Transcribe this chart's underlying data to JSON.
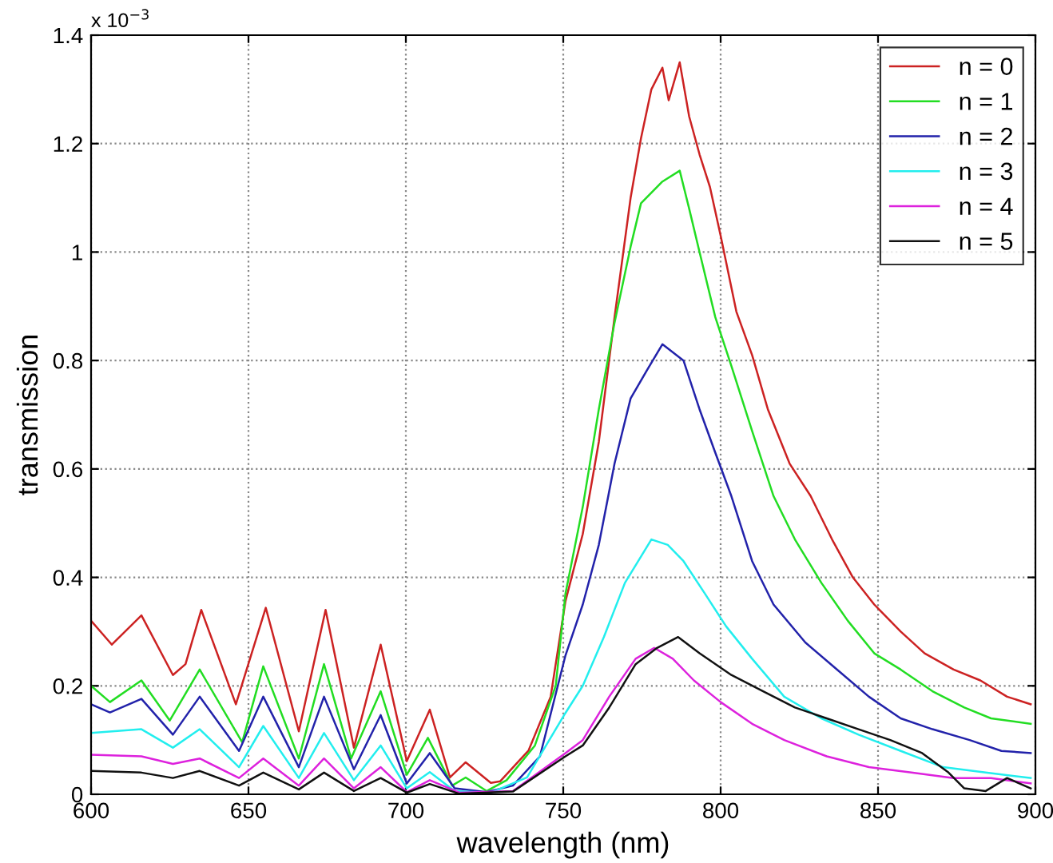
{
  "chart_data": {
    "type": "line",
    "xlabel": "wavelength (nm)",
    "ylabel": "transmission",
    "annotations": [
      "x 10$^{−3}$"
    ],
    "xlim": [
      600,
      900
    ],
    "ylim": [
      0,
      1.4
    ],
    "xticks": [
      600,
      650,
      700,
      750,
      800,
      850,
      900
    ],
    "yticks": [
      0,
      0.2,
      0.4,
      0.6,
      0.8,
      1,
      1.2,
      1.4
    ],
    "grid": true,
    "legend": "top right",
    "line_style": "solid",
    "marker": "none",
    "series": [
      {
        "name": "n = 0",
        "color": "#cc2222",
        "x": [
          600,
          606.6,
          616,
          626,
          630,
          635,
          646,
          655.5,
          666,
          674.5,
          683.5,
          692,
          700.3,
          707.6,
          714,
          719,
          727,
          730,
          739,
          746,
          750.7,
          756.2,
          761.3,
          766.3,
          771.4,
          774.7,
          778,
          781.5,
          783.5,
          787,
          790,
          793.3,
          796.6,
          800,
          805,
          810,
          815,
          821.9,
          828.6,
          835.4,
          842,
          848.8,
          857.2,
          864.8,
          874,
          882.5,
          891,
          898.5
        ],
        "values": [
          0.32,
          0.276,
          0.33,
          0.22,
          0.24,
          0.34,
          0.166,
          0.344,
          0.116,
          0.34,
          0.086,
          0.276,
          0.061,
          0.156,
          0.031,
          0.059,
          0.021,
          0.024,
          0.081,
          0.18,
          0.356,
          0.48,
          0.65,
          0.88,
          1.1,
          1.21,
          1.3,
          1.34,
          1.28,
          1.35,
          1.25,
          1.18,
          1.12,
          1.03,
          0.89,
          0.81,
          0.71,
          0.61,
          0.55,
          0.47,
          0.4,
          0.35,
          0.3,
          0.26,
          0.23,
          0.21,
          0.18,
          0.166
        ]
      },
      {
        "name": "n = 1",
        "color": "#22dd22",
        "x": [
          600,
          606,
          616,
          625,
          634.5,
          648,
          654.7,
          666,
          674,
          682.6,
          692,
          700.3,
          707,
          714.7,
          719,
          725.7,
          732,
          741,
          747.6,
          750.7,
          756.2,
          761.3,
          766.3,
          771.4,
          774.7,
          781.5,
          787,
          790,
          793.3,
          798.3,
          803.4,
          810,
          816.8,
          823.6,
          832,
          840.4,
          848.8,
          857.2,
          867.3,
          877.4,
          885.9,
          898.5
        ],
        "values": [
          0.2,
          0.17,
          0.21,
          0.136,
          0.23,
          0.096,
          0.236,
          0.066,
          0.24,
          0.066,
          0.19,
          0.036,
          0.104,
          0.016,
          0.031,
          0.006,
          0.026,
          0.09,
          0.2,
          0.37,
          0.53,
          0.71,
          0.87,
          1.01,
          1.09,
          1.13,
          1.15,
          1.08,
          1.0,
          0.88,
          0.79,
          0.67,
          0.55,
          0.47,
          0.39,
          0.32,
          0.26,
          0.23,
          0.19,
          0.16,
          0.14,
          0.13
        ]
      },
      {
        "name": "n = 2",
        "color": "#2222aa",
        "x": [
          600,
          606,
          616,
          626,
          634.5,
          647,
          654.7,
          666,
          674,
          683.5,
          692,
          700.3,
          707.6,
          715.5,
          725.7,
          734,
          742.6,
          750.7,
          756.2,
          761.3,
          766.3,
          771.4,
          776.4,
          781.5,
          788.2,
          793.3,
          798.3,
          803.4,
          810,
          816.8,
          826.9,
          837,
          847.1,
          857.2,
          867.3,
          879.1,
          889.2,
          898.5
        ],
        "values": [
          0.166,
          0.151,
          0.176,
          0.11,
          0.18,
          0.08,
          0.18,
          0.05,
          0.18,
          0.046,
          0.146,
          0.02,
          0.076,
          0.011,
          0.004,
          0.016,
          0.07,
          0.256,
          0.35,
          0.46,
          0.61,
          0.73,
          0.78,
          0.83,
          0.8,
          0.71,
          0.63,
          0.55,
          0.43,
          0.35,
          0.28,
          0.23,
          0.18,
          0.14,
          0.12,
          0.1,
          0.08,
          0.076
        ]
      },
      {
        "name": "n = 3",
        "color": "#22eeee",
        "x": [
          600,
          616,
          626,
          634.5,
          647,
          654.7,
          666,
          674,
          683.5,
          692,
          700.3,
          707.6,
          715.5,
          727,
          738.5,
          750.7,
          756.2,
          762.9,
          769.6,
          778,
          783.2,
          788.2,
          795,
          801.7,
          810,
          820.2,
          832,
          843.8,
          857.2,
          870.7,
          884.2,
          898.5
        ],
        "values": [
          0.113,
          0.12,
          0.086,
          0.12,
          0.05,
          0.126,
          0.03,
          0.113,
          0.026,
          0.09,
          0.011,
          0.041,
          0.006,
          0.003,
          0.031,
          0.15,
          0.2,
          0.29,
          0.39,
          0.47,
          0.46,
          0.43,
          0.37,
          0.31,
          0.25,
          0.18,
          0.14,
          0.11,
          0.08,
          0.05,
          0.04,
          0.03
        ]
      },
      {
        "name": "n = 4",
        "color": "#dd22dd",
        "x": [
          600,
          616,
          626,
          634.5,
          647,
          654.7,
          666,
          674,
          683.5,
          692,
          700.3,
          707.6,
          717,
          734,
          750.7,
          756.2,
          764.6,
          773,
          778.9,
          784.8,
          791.5,
          800,
          810,
          820.2,
          833.7,
          847.1,
          860.6,
          874,
          885.9,
          898.5
        ],
        "values": [
          0.073,
          0.07,
          0.056,
          0.066,
          0.03,
          0.066,
          0.016,
          0.066,
          0.011,
          0.05,
          0.004,
          0.026,
          0.003,
          0.006,
          0.076,
          0.1,
          0.18,
          0.25,
          0.27,
          0.25,
          0.21,
          0.17,
          0.13,
          0.1,
          0.07,
          0.05,
          0.04,
          0.03,
          0.03,
          0.02
        ]
      },
      {
        "name": "n = 5",
        "color": "#111111",
        "x": [
          600,
          616,
          626,
          634.5,
          647,
          654.7,
          666,
          674,
          683.5,
          692,
          700.3,
          707.6,
          717,
          734,
          750.7,
          756.2,
          764.6,
          773,
          779.8,
          786.5,
          793.3,
          803.4,
          813.5,
          823.6,
          833.7,
          843.8,
          853.9,
          864,
          872.4,
          877.4,
          884.2,
          891,
          898.5
        ],
        "values": [
          0.043,
          0.04,
          0.03,
          0.043,
          0.016,
          0.04,
          0.009,
          0.04,
          0.006,
          0.03,
          0.003,
          0.019,
          0.001,
          0.005,
          0.07,
          0.09,
          0.16,
          0.24,
          0.27,
          0.29,
          0.26,
          0.22,
          0.19,
          0.16,
          0.14,
          0.12,
          0.1,
          0.076,
          0.04,
          0.011,
          0.006,
          0.03,
          0.011
        ]
      }
    ]
  }
}
